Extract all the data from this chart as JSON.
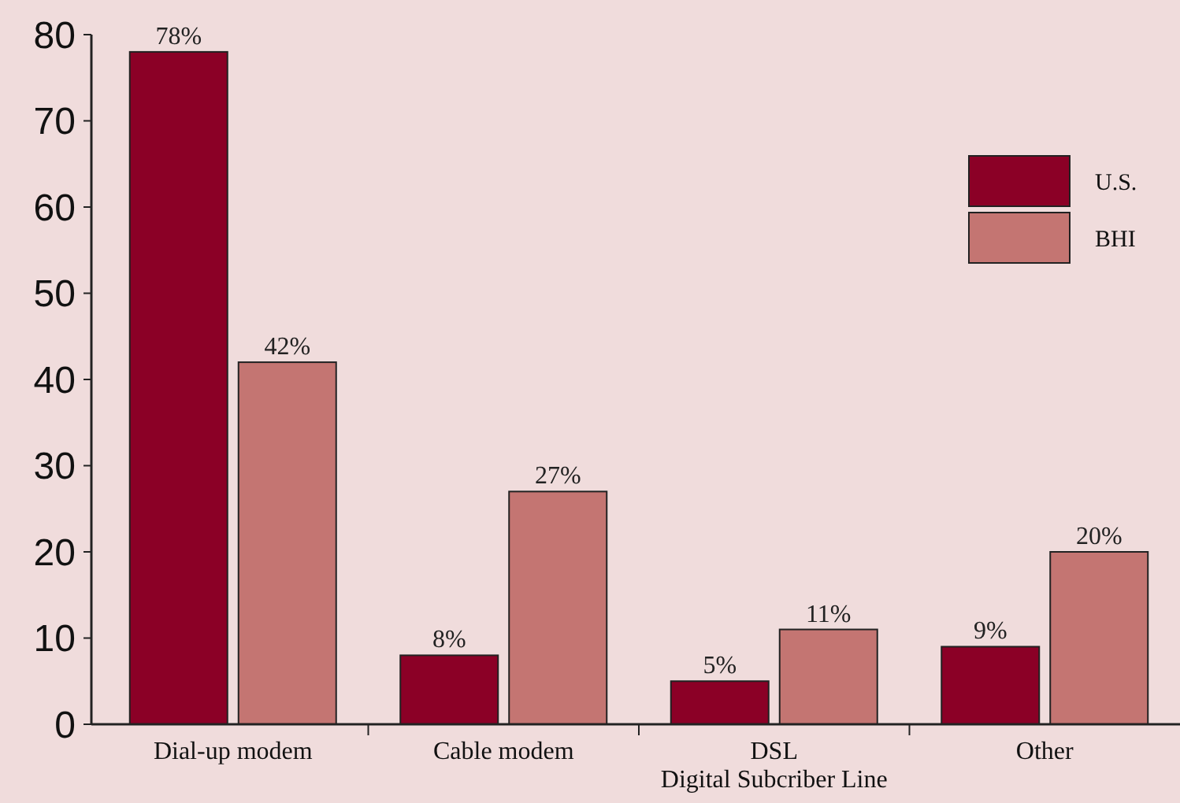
{
  "chart_data": {
    "type": "bar",
    "categories": [
      "Dial-up modem",
      "Cable modem",
      "DSL\nDigital Subcriber Line",
      "Other"
    ],
    "series": [
      {
        "name": "U.S.",
        "color": "#8b0026",
        "values": [
          78,
          8,
          5,
          9
        ],
        "value_labels": [
          "78%",
          "8%",
          "5%",
          "9%"
        ]
      },
      {
        "name": "BHI",
        "color": "#c47572",
        "values": [
          42,
          27,
          11,
          20
        ],
        "value_labels": [
          "42%",
          "27%",
          "11%",
          "20%"
        ]
      }
    ],
    "ylim": [
      0,
      80
    ],
    "yticks": [
      0,
      10,
      20,
      30,
      40,
      50,
      60,
      70,
      80
    ],
    "legend": "top right",
    "grid": false
  }
}
